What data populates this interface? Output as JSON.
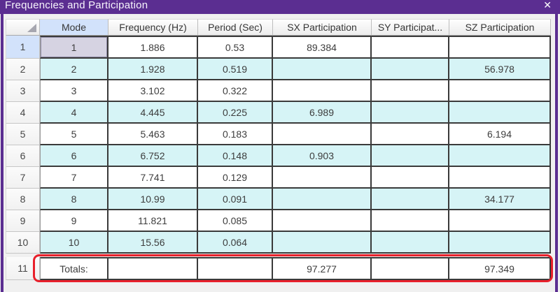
{
  "window": {
    "title": "Frequencies and Participation",
    "close_label": "✕",
    "accent_purple": "#5b2e91",
    "zebra_cyan": "#d6f4f6",
    "selected_cell_bg": "#d6d3e2",
    "annotation_red": "#e8202b"
  },
  "table": {
    "columns": [
      {
        "key": "mode",
        "label": "Mode"
      },
      {
        "key": "freq",
        "label": "Frequency (Hz)"
      },
      {
        "key": "period",
        "label": "Period (Sec)"
      },
      {
        "key": "sx",
        "label": "SX Participation"
      },
      {
        "key": "sy",
        "label": "SY Participat..."
      },
      {
        "key": "sz",
        "label": "SZ Participation"
      }
    ],
    "rows": [
      {
        "num": "1",
        "mode": "1",
        "freq": "1.886",
        "period": "0.53",
        "sx": "89.384",
        "sy": "",
        "sz": "",
        "zebra": false,
        "selected_cell": "mode",
        "active_row": true
      },
      {
        "num": "2",
        "mode": "2",
        "freq": "1.928",
        "period": "0.519",
        "sx": "",
        "sy": "",
        "sz": "56.978",
        "zebra": true
      },
      {
        "num": "3",
        "mode": "3",
        "freq": "3.102",
        "period": "0.322",
        "sx": "",
        "sy": "",
        "sz": "",
        "zebra": false
      },
      {
        "num": "4",
        "mode": "4",
        "freq": "4.445",
        "period": "0.225",
        "sx": "6.989",
        "sy": "",
        "sz": "",
        "zebra": true
      },
      {
        "num": "5",
        "mode": "5",
        "freq": "5.463",
        "period": "0.183",
        "sx": "",
        "sy": "",
        "sz": "6.194",
        "zebra": false
      },
      {
        "num": "6",
        "mode": "6",
        "freq": "6.752",
        "period": "0.148",
        "sx": "0.903",
        "sy": "",
        "sz": "",
        "zebra": true
      },
      {
        "num": "7",
        "mode": "7",
        "freq": "7.741",
        "period": "0.129",
        "sx": "",
        "sy": "",
        "sz": "",
        "zebra": false
      },
      {
        "num": "8",
        "mode": "8",
        "freq": "10.99",
        "period": "0.091",
        "sx": "",
        "sy": "",
        "sz": "34.177",
        "zebra": true
      },
      {
        "num": "9",
        "mode": "9",
        "freq": "11.821",
        "period": "0.085",
        "sx": "",
        "sy": "",
        "sz": "",
        "zebra": false
      },
      {
        "num": "10",
        "mode": "10",
        "freq": "15.56",
        "period": "0.064",
        "sx": "",
        "sy": "",
        "sz": "",
        "zebra": true
      }
    ],
    "totals_row": {
      "num": "11",
      "mode": "Totals:",
      "freq": "",
      "period": "",
      "sx": "97.277",
      "sy": "",
      "sz": "97.349"
    }
  }
}
